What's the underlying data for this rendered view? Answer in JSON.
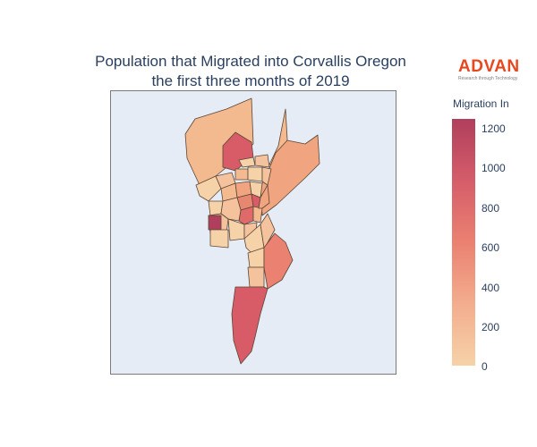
{
  "title": {
    "line1": "Population that Migrated into Corvallis Oregon",
    "line2": "the first three months of 2019"
  },
  "logo": {
    "name": "ADVAN",
    "tagline": "Research through Technology"
  },
  "colorbar": {
    "title": "Migration In",
    "ticks": [
      "0",
      "200",
      "400",
      "600",
      "800",
      "1000",
      "1200"
    ],
    "colors": [
      "#f6d2a9",
      "#f3ad8e",
      "#ea8171",
      "#d55d6a",
      "#b03f5d"
    ]
  },
  "map": {
    "background": "#e5ecf6",
    "border_color": "#7a7a7a",
    "region_stroke": "#5b4636"
  }
}
